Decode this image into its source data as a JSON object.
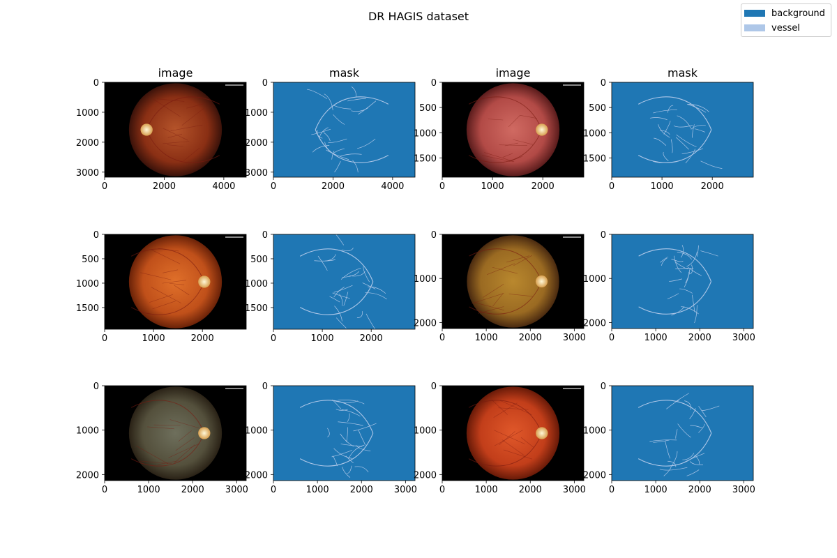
{
  "title": "DR HAGIS dataset",
  "legend": [
    {
      "label": "background",
      "color": "#1f77b4"
    },
    {
      "label": "vessel",
      "color": "#aec7e8"
    }
  ],
  "colors": {
    "background": "#1f77b4",
    "vessel": "#aec7e8",
    "frame": "#000000"
  },
  "chart_data": [
    {
      "type": "heatmap",
      "title": "image",
      "width": 4752,
      "height": 3168,
      "xticks": [
        0,
        2000,
        4000
      ],
      "yticks": [
        0,
        1000,
        2000,
        3000
      ],
      "content": "fundus-photo",
      "fundus_tone": "dark-orange"
    },
    {
      "type": "heatmap",
      "title": "mask",
      "width": 4752,
      "height": 3168,
      "xticks": [
        0,
        2000,
        4000
      ],
      "yticks": [
        0,
        1000,
        2000,
        3000
      ],
      "content": "vessel-mask"
    },
    {
      "type": "heatmap",
      "title": "image",
      "width": 2816,
      "height": 1880,
      "xticks": [
        0,
        1000,
        2000
      ],
      "yticks": [
        0,
        500,
        1000,
        1500
      ],
      "content": "fundus-photo",
      "fundus_tone": "pink-red"
    },
    {
      "type": "heatmap",
      "title": "mask",
      "width": 2816,
      "height": 1880,
      "xticks": [
        0,
        1000,
        2000
      ],
      "yticks": [
        0,
        500,
        1000,
        1500
      ],
      "content": "vessel-mask"
    },
    {
      "type": "heatmap",
      "title": "",
      "width": 2896,
      "height": 1944,
      "xticks": [
        0,
        1000,
        2000
      ],
      "yticks": [
        0,
        500,
        1000,
        1500
      ],
      "content": "fundus-photo",
      "fundus_tone": "bright-orange"
    },
    {
      "type": "heatmap",
      "title": "",
      "width": 2896,
      "height": 1944,
      "xticks": [
        0,
        1000,
        2000
      ],
      "yticks": [
        0,
        500,
        1000,
        1500
      ],
      "content": "vessel-mask"
    },
    {
      "type": "heatmap",
      "title": "",
      "width": 3216,
      "height": 2136,
      "xticks": [
        0,
        1000,
        2000,
        3000
      ],
      "yticks": [
        0,
        1000,
        2000
      ],
      "content": "fundus-photo",
      "fundus_tone": "olive-orange"
    },
    {
      "type": "heatmap",
      "title": "",
      "width": 3216,
      "height": 2136,
      "xticks": [
        0,
        1000,
        2000,
        3000
      ],
      "yticks": [
        0,
        1000,
        2000
      ],
      "content": "vessel-mask"
    },
    {
      "type": "heatmap",
      "title": "",
      "width": 3216,
      "height": 2136,
      "xticks": [
        0,
        1000,
        2000,
        3000
      ],
      "yticks": [
        0,
        1000,
        2000
      ],
      "content": "fundus-photo",
      "fundus_tone": "grey-green"
    },
    {
      "type": "heatmap",
      "title": "",
      "width": 3216,
      "height": 2136,
      "xticks": [
        0,
        1000,
        2000,
        3000
      ],
      "yticks": [
        0,
        1000,
        2000
      ],
      "content": "vessel-mask"
    },
    {
      "type": "heatmap",
      "title": "",
      "width": 3216,
      "height": 2136,
      "xticks": [
        0,
        1000,
        2000,
        3000
      ],
      "yticks": [
        0,
        1000,
        2000
      ],
      "content": "fundus-photo",
      "fundus_tone": "red-orange"
    },
    {
      "type": "heatmap",
      "title": "",
      "width": 3216,
      "height": 2136,
      "xticks": [
        0,
        1000,
        2000,
        3000
      ],
      "yticks": [
        0,
        1000,
        2000
      ],
      "content": "vessel-mask"
    }
  ]
}
